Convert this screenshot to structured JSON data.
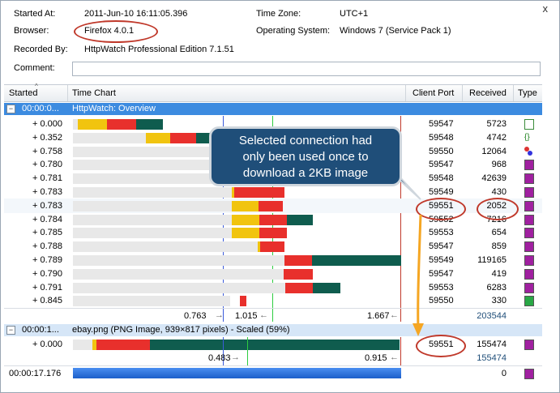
{
  "window": {
    "close_glyph": "x"
  },
  "info": {
    "started_at_label": "Started At:",
    "started_at_value": "2011-Jun-10 16:11:05.396",
    "time_zone_label": "Time Zone:",
    "time_zone_value": "UTC+1",
    "browser_label": "Browser:",
    "browser_value": "Firefox 4.0.1",
    "os_label": "Operating System:",
    "os_value": "Windows 7 (Service Pack 1)",
    "recorded_by_label": "Recorded By:",
    "recorded_by_value": "HttpWatch Professional Edition 7.1.51",
    "comment_label": "Comment:",
    "comment_value": ""
  },
  "columns": {
    "started": "Started",
    "time_chart": "Time Chart",
    "client_port": "Client Port",
    "received": "Received",
    "type": "Type"
  },
  "group1": {
    "toggle": "−",
    "time": "00:00:0...",
    "title": "HttpWatch: Overview"
  },
  "rows": [
    {
      "time": "+ 0.000",
      "port": "59547",
      "received": "5723",
      "icon": "page-icon"
    },
    {
      "time": "+ 0.352",
      "port": "59548",
      "received": "4742",
      "icon": "script-icon"
    },
    {
      "time": "+ 0.758",
      "port": "59550",
      "received": "12064",
      "icon": "css-icon"
    },
    {
      "time": "+ 0.780",
      "port": "59547",
      "received": "968",
      "icon": "image-icon"
    },
    {
      "time": "+ 0.781",
      "port": "59548",
      "received": "42639",
      "icon": "image-icon"
    },
    {
      "time": "+ 0.783",
      "port": "59549",
      "received": "430",
      "icon": "image-icon"
    },
    {
      "time": "+ 0.783",
      "port": "59551",
      "received": "2052",
      "icon": "image-icon"
    },
    {
      "time": "+ 0.784",
      "port": "59552",
      "received": "7216",
      "icon": "image-icon"
    },
    {
      "time": "+ 0.785",
      "port": "59553",
      "received": "654",
      "icon": "image-icon"
    },
    {
      "time": "+ 0.788",
      "port": "59547",
      "received": "859",
      "icon": "image-icon"
    },
    {
      "time": "+ 0.789",
      "port": "59549",
      "received": "119165",
      "icon": "image-icon"
    },
    {
      "time": "+ 0.790",
      "port": "59547",
      "received": "419",
      "icon": "image-icon"
    },
    {
      "time": "+ 0.791",
      "port": "59553",
      "received": "6283",
      "icon": "image-icon"
    },
    {
      "time": "+ 0.845",
      "port": "59550",
      "received": "330",
      "icon": "flash-icon"
    }
  ],
  "summary1": {
    "t1": "0.763",
    "t2": "1.015",
    "t3": "1.667",
    "received": "203544"
  },
  "group2": {
    "toggle": "−",
    "time": "00:00:1...",
    "title": "ebay.png (PNG Image, 939×817 pixels) - Scaled (59%)"
  },
  "row2": {
    "time": "+ 0.000",
    "port": "59551",
    "received": "155474",
    "icon": "image-icon"
  },
  "summary2": {
    "t1": "0.483",
    "t2": "0.915",
    "received": "155474"
  },
  "footer": {
    "time": "00:00:17.176",
    "received": "0",
    "icon": "image-icon"
  },
  "callout": {
    "line1": "Selected connection had",
    "line2": "only been used once to",
    "line3": "download a 2KB image"
  },
  "colors": {
    "blocked": "#e8e8e8",
    "connect": "#f1c40f",
    "wait": "#e8302c",
    "receive": "#0f5c4e",
    "header_blue": "#3c8be0",
    "callout": "#1f4e79"
  }
}
